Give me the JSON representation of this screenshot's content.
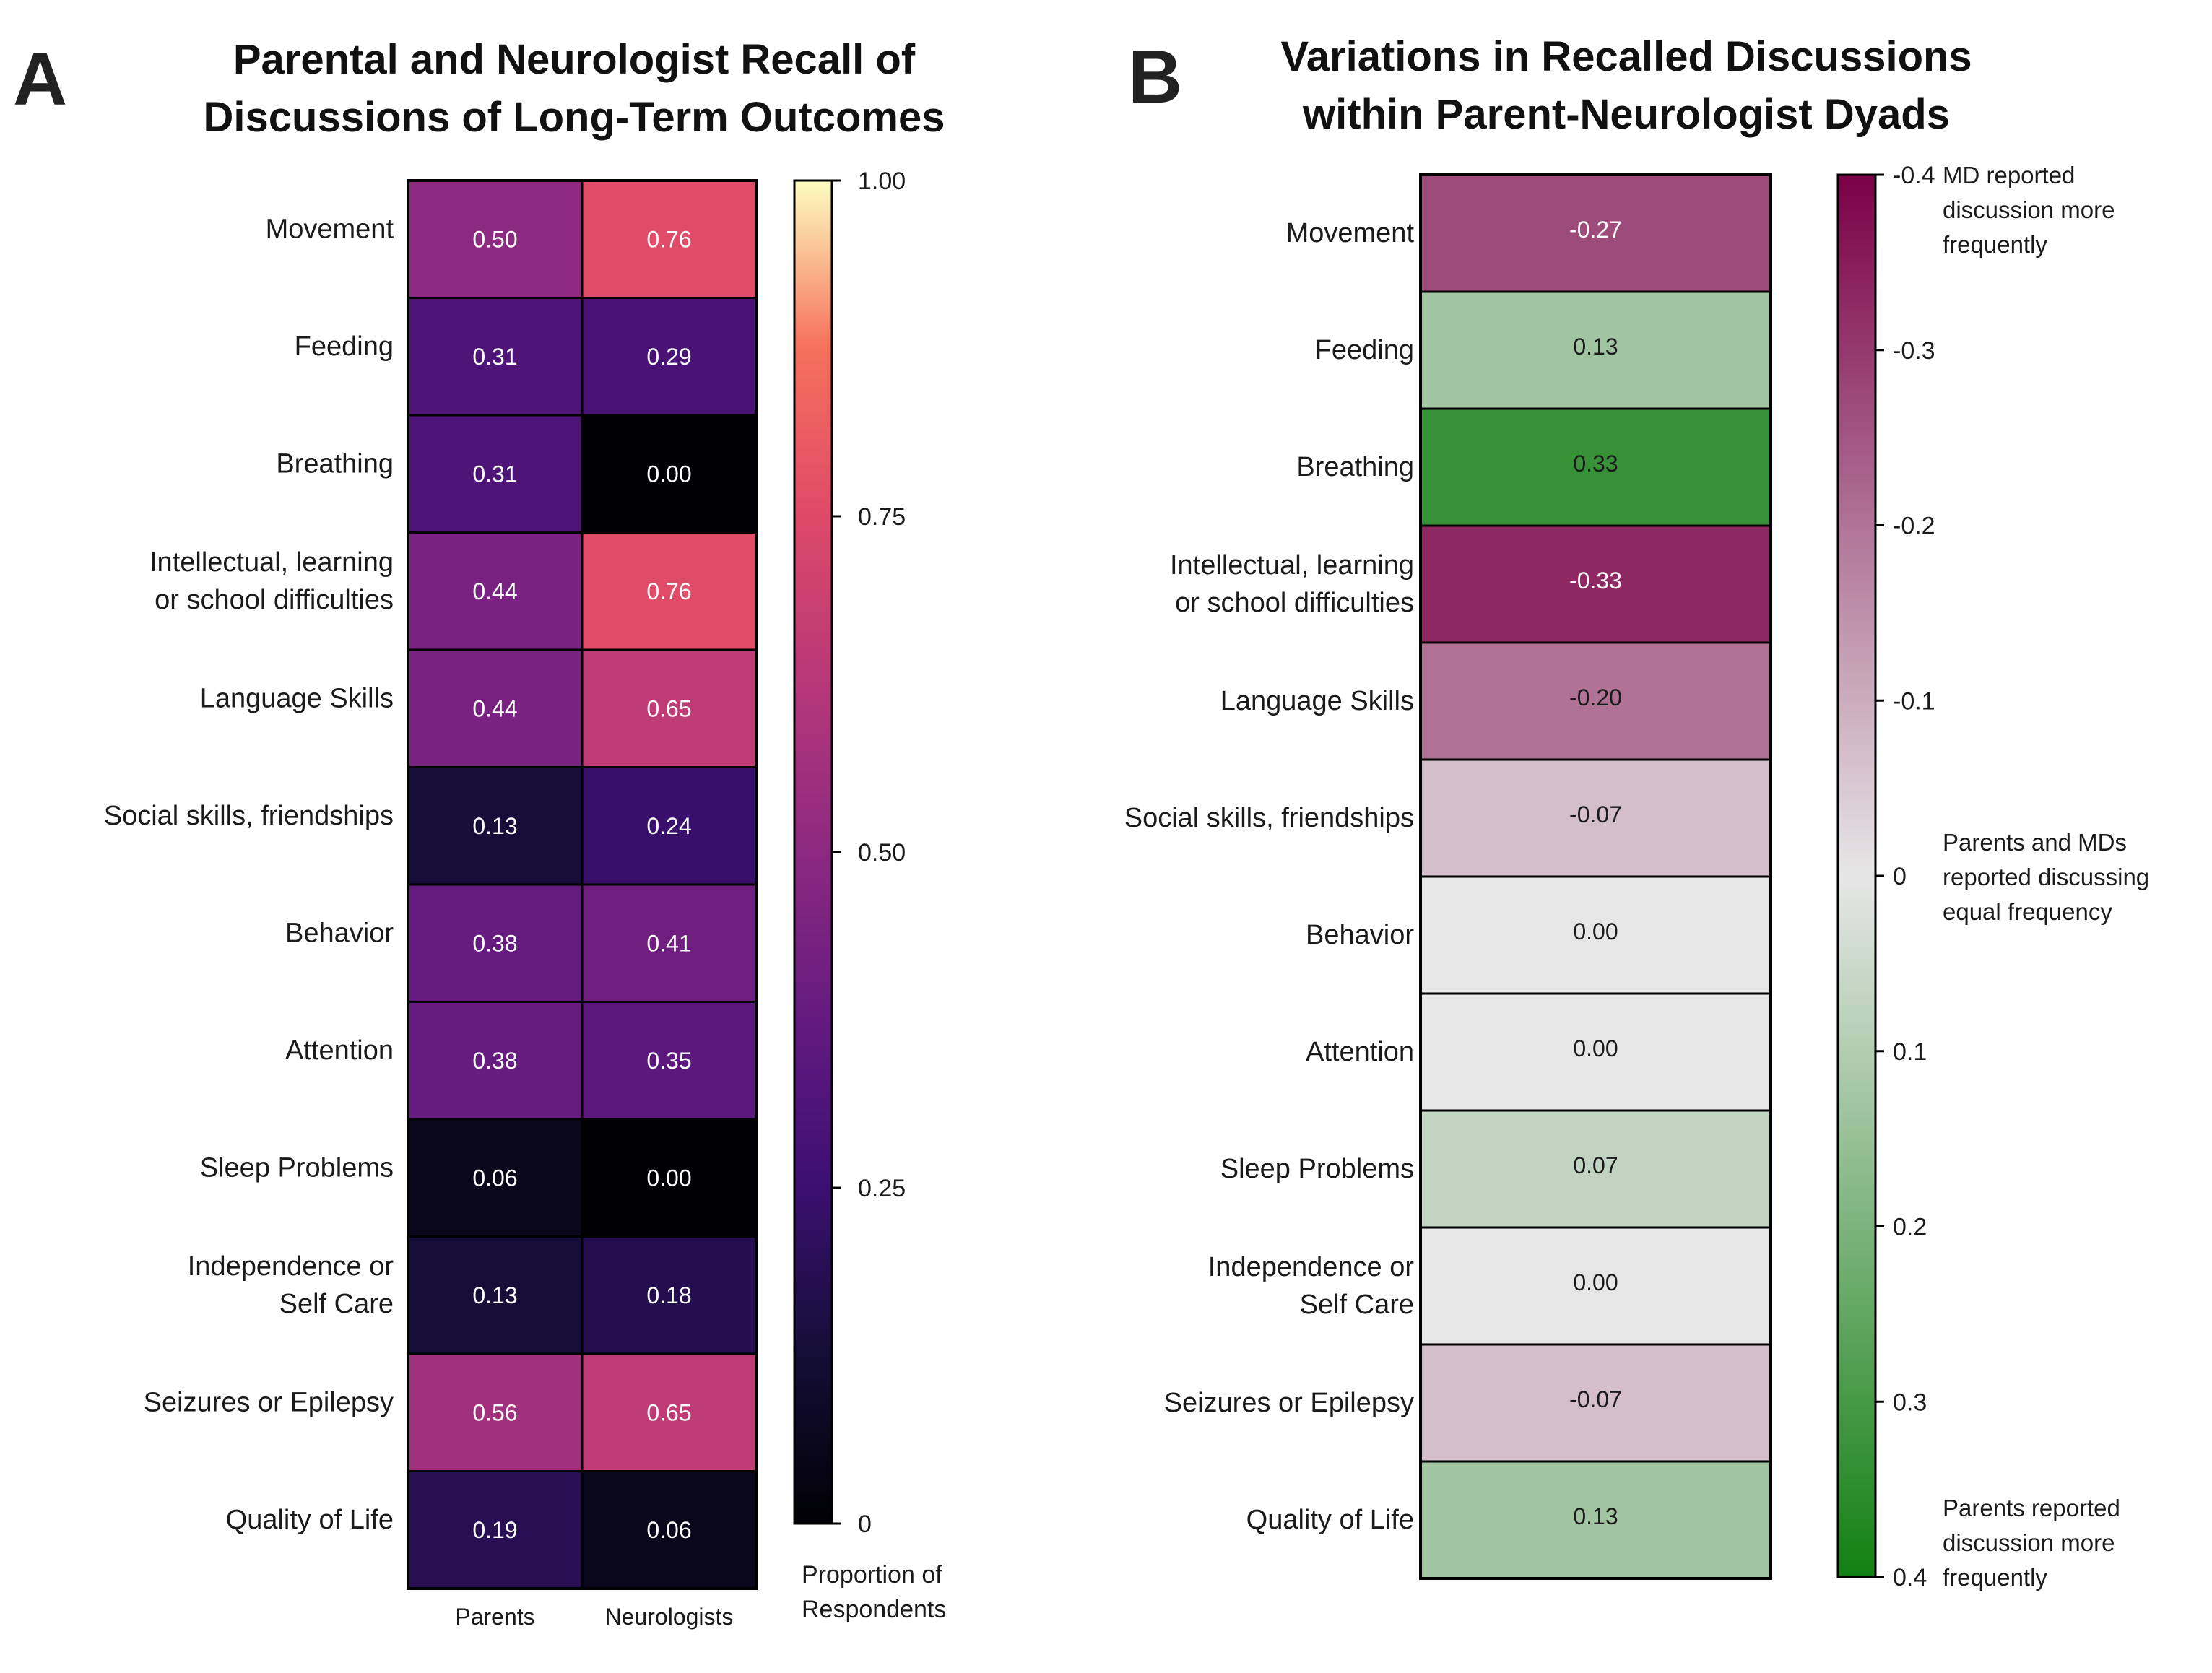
{
  "panel_a": {
    "letter": "A",
    "title_lines": [
      "Parental and Neurologist Recall of",
      "Discussions of Long-Term Outcomes"
    ]
  },
  "panel_b": {
    "letter": "B",
    "title_lines": [
      "Variations in Recalled Discussions",
      "within Parent-Neurologist Dyads"
    ]
  },
  "chart_data": [
    {
      "type": "heatmap",
      "title": "Parental and Neurologist Recall of Discussions of Long-Term Outcomes",
      "rows": [
        [
          "Movement"
        ],
        [
          "Feeding"
        ],
        [
          "Breathing"
        ],
        [
          "Intellectual, learning",
          "or school difficulties"
        ],
        [
          "Language Skills"
        ],
        [
          "Social skills, friendships"
        ],
        [
          "Behavior"
        ],
        [
          "Attention"
        ],
        [
          "Sleep Problems"
        ],
        [
          "Independence or",
          "Self Care"
        ],
        [
          "Seizures or Epilepsy"
        ],
        [
          "Quality of Life"
        ]
      ],
      "columns": [
        "Parents",
        "Neurologists"
      ],
      "values": [
        [
          0.5,
          0.76
        ],
        [
          0.31,
          0.29
        ],
        [
          0.31,
          0.0
        ],
        [
          0.44,
          0.76
        ],
        [
          0.44,
          0.65
        ],
        [
          0.13,
          0.24
        ],
        [
          0.38,
          0.41
        ],
        [
          0.38,
          0.35
        ],
        [
          0.06,
          0.0
        ],
        [
          0.13,
          0.18
        ],
        [
          0.56,
          0.65
        ],
        [
          0.19,
          0.06
        ]
      ],
      "value_labels": [
        [
          "0.50",
          "0.76"
        ],
        [
          "0.31",
          "0.29"
        ],
        [
          "0.31",
          "0.00"
        ],
        [
          "0.44",
          "0.76"
        ],
        [
          "0.44",
          "0.65"
        ],
        [
          "0.13",
          "0.24"
        ],
        [
          "0.38",
          "0.41"
        ],
        [
          "0.38",
          "0.35"
        ],
        [
          "0.06",
          "0.00"
        ],
        [
          "0.13",
          "0.18"
        ],
        [
          "0.56",
          "0.65"
        ],
        [
          "0.19",
          "0.06"
        ]
      ],
      "colorscale": "magma",
      "color_range": [
        0,
        1
      ],
      "colorbar": {
        "ticks": [
          0,
          0.25,
          0.5,
          0.75,
          1.0
        ],
        "tick_labels": [
          "0",
          "0.25",
          "0.50",
          "0.75",
          "1.00"
        ],
        "label_lines": [
          "Proportion of",
          "Respondents"
        ]
      }
    },
    {
      "type": "heatmap",
      "title": "Variations in Recalled Discussions within Parent-Neurologist Dyads",
      "rows": [
        [
          "Movement"
        ],
        [
          "Feeding"
        ],
        [
          "Breathing"
        ],
        [
          "Intellectual, learning",
          "or school difficulties"
        ],
        [
          "Language Skills"
        ],
        [
          "Social skills, friendships"
        ],
        [
          "Behavior"
        ],
        [
          "Attention"
        ],
        [
          "Sleep Problems"
        ],
        [
          "Independence or",
          "Self Care"
        ],
        [
          "Seizures or Epilepsy"
        ],
        [
          "Quality of Life"
        ]
      ],
      "values": [
        -0.27,
        0.13,
        0.33,
        -0.33,
        -0.2,
        -0.07,
        0.0,
        0.0,
        0.07,
        0.0,
        -0.07,
        0.13
      ],
      "value_labels": [
        "-0.27",
        "0.13",
        "0.33",
        "-0.33",
        "-0.20",
        "-0.07",
        "0.00",
        "0.00",
        "0.07",
        "0.00",
        "-0.07",
        "0.13"
      ],
      "colorscale": "PiYG (magenta negative, green positive)",
      "color_range": [
        -0.4,
        0.4
      ],
      "colors": {
        "negative_end": "#7a0046",
        "neutral": "#e6e6e6",
        "positive_end": "#128012"
      },
      "colorbar": {
        "ticks": [
          -0.4,
          -0.3,
          -0.2,
          -0.1,
          0,
          0.1,
          0.2,
          0.3,
          0.4
        ],
        "tick_labels": [
          "-0.4",
          "-0.3",
          "-0.2",
          "-0.1",
          "0",
          "0.1",
          "0.2",
          "0.3",
          "0.4"
        ],
        "annotations": [
          [
            "MD reported",
            "discussion more",
            "frequently"
          ],
          [
            "Parents and MDs",
            "reported discussing",
            "equal frequency"
          ],
          [
            "Parents reported",
            "discussion more",
            "frequently"
          ]
        ]
      }
    }
  ]
}
